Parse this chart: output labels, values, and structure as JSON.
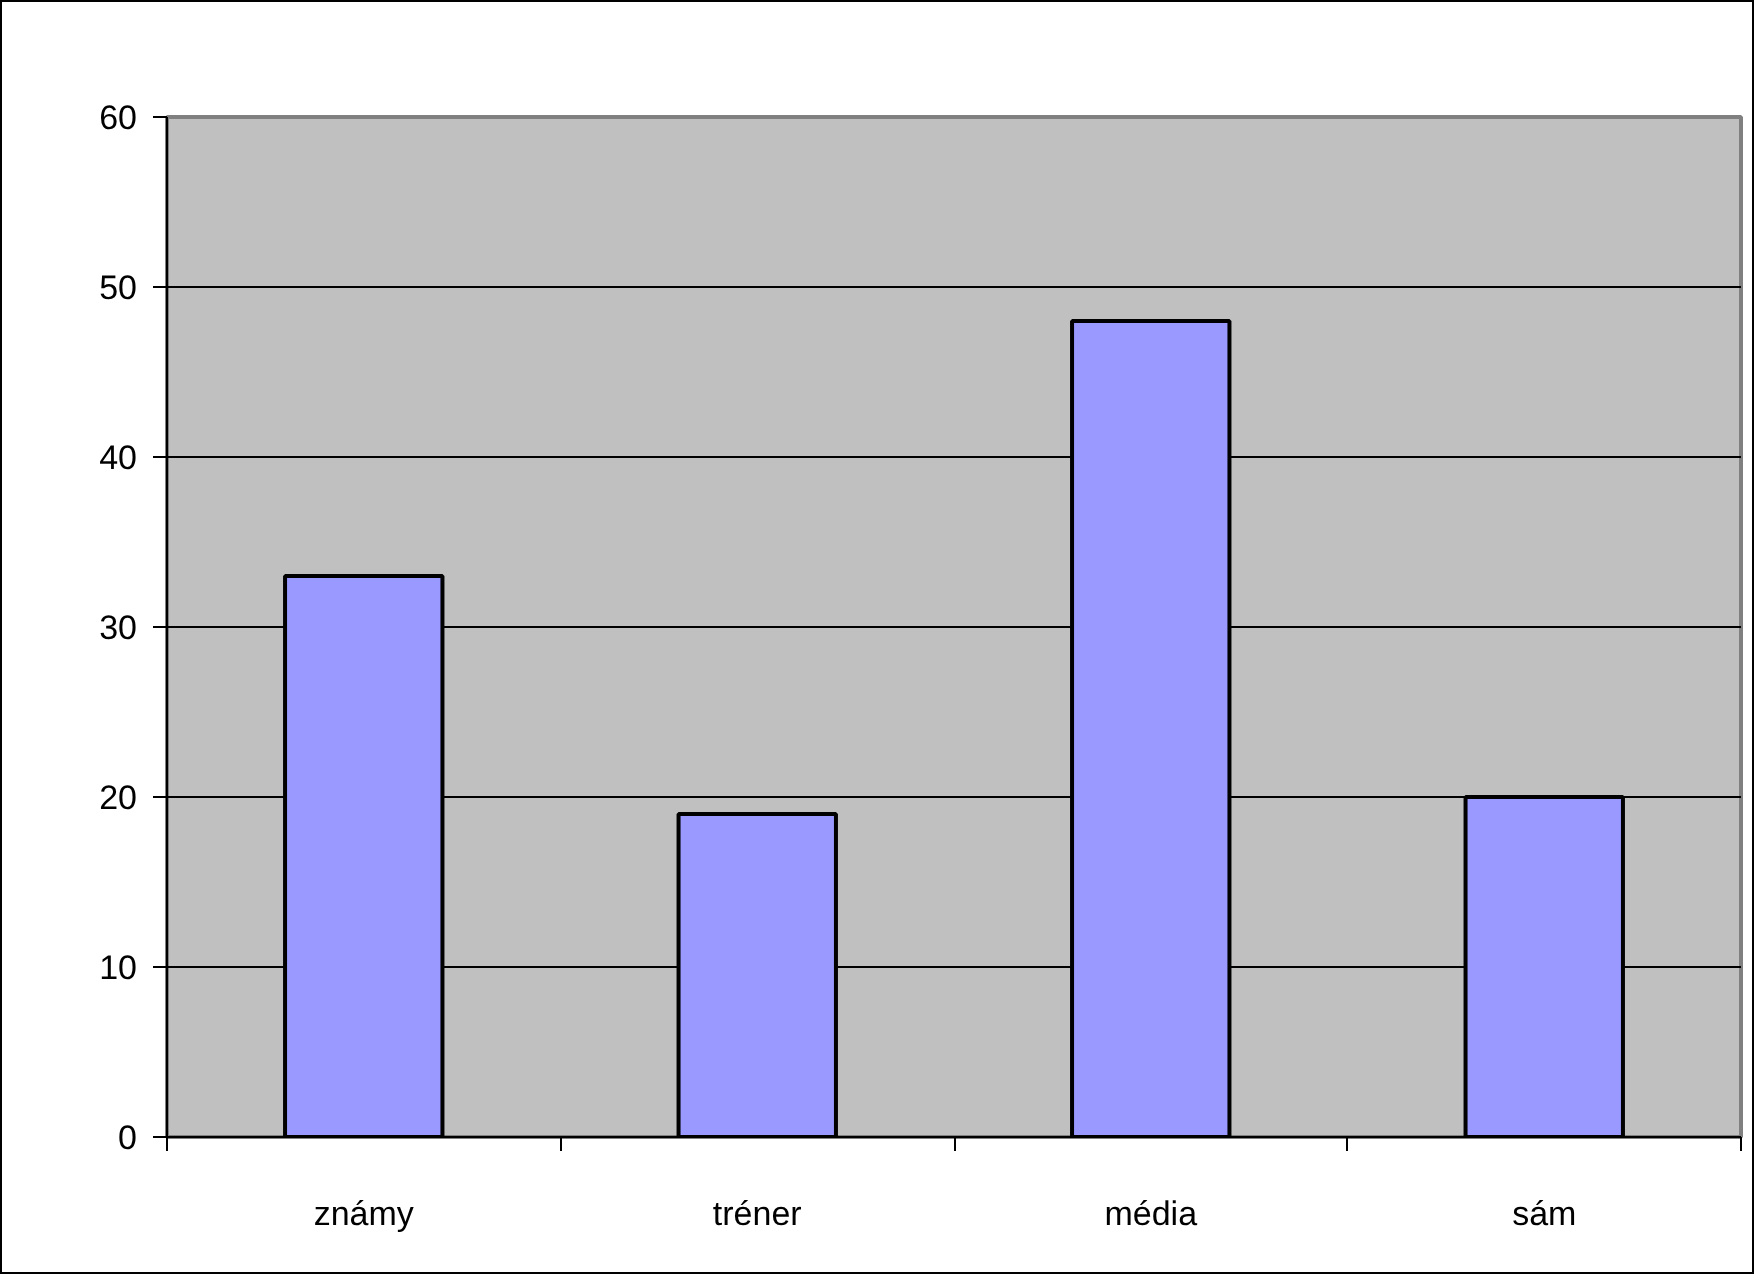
{
  "chart_data": {
    "type": "bar",
    "categories": [
      "známy",
      "tréner",
      "média",
      "sám"
    ],
    "values": [
      33,
      19,
      48,
      20
    ],
    "color": "#9999ff",
    "ylim": [
      0,
      60
    ],
    "yticks": [
      0,
      10,
      20,
      30,
      40,
      50,
      60
    ],
    "grid": "y"
  }
}
